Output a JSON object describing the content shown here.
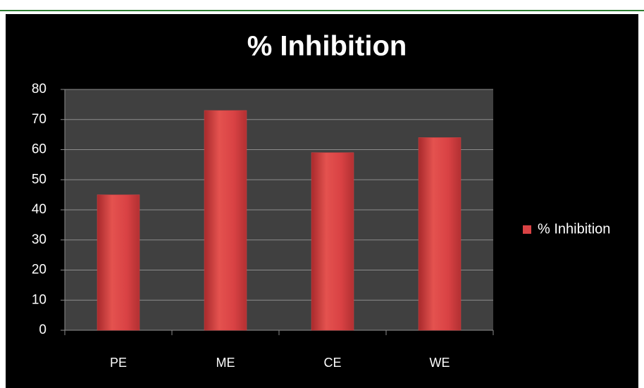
{
  "chart_data": {
    "type": "bar",
    "title": "% Inhibition",
    "categories": [
      "PE",
      "ME",
      "CE",
      "WE"
    ],
    "series": [
      {
        "name": "% Inhibition",
        "color": "#d94244",
        "values": [
          45,
          73,
          59,
          64
        ]
      }
    ],
    "ylim": [
      0,
      80
    ],
    "yticks": [
      0,
      10,
      20,
      30,
      40,
      50,
      60,
      70,
      80
    ],
    "grid": true,
    "legend": "right"
  }
}
